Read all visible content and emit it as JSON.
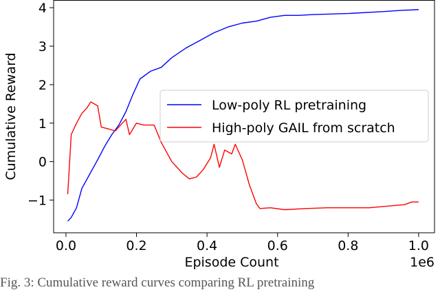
{
  "caption": "Fig. 3: Cumulative reward curves comparing RL pretraining",
  "chart_data": {
    "type": "line",
    "xlabel": "Episode Count",
    "ylabel": "Cumulative Reward",
    "x_offset_label": "1e6",
    "xlim": [
      -0.035,
      1.045
    ],
    "ylim": [
      -1.85,
      4.2
    ],
    "xticks": [
      0.0,
      0.2,
      0.4,
      0.6,
      0.8,
      1.0
    ],
    "xtick_labels": [
      "0.0",
      "0.2",
      "0.4",
      "0.6",
      "0.8",
      "1.0"
    ],
    "yticks": [
      -1,
      0,
      1,
      2,
      3,
      4
    ],
    "ytick_labels": [
      "−1",
      "0",
      "1",
      "2",
      "3",
      "4"
    ],
    "grid": false,
    "legend_position": "center-right",
    "series": [
      {
        "name": "Low-poly RL pretraining",
        "color": "#0000ff",
        "points": [
          [
            0.005,
            -1.55
          ],
          [
            0.015,
            -1.45
          ],
          [
            0.03,
            -1.2
          ],
          [
            0.045,
            -0.7
          ],
          [
            0.06,
            -0.45
          ],
          [
            0.075,
            -0.2
          ],
          [
            0.09,
            0.05
          ],
          [
            0.11,
            0.4
          ],
          [
            0.13,
            0.7
          ],
          [
            0.15,
            0.95
          ],
          [
            0.17,
            1.3
          ],
          [
            0.19,
            1.75
          ],
          [
            0.21,
            2.15
          ],
          [
            0.24,
            2.35
          ],
          [
            0.27,
            2.45
          ],
          [
            0.3,
            2.7
          ],
          [
            0.34,
            2.95
          ],
          [
            0.38,
            3.15
          ],
          [
            0.42,
            3.35
          ],
          [
            0.46,
            3.5
          ],
          [
            0.5,
            3.6
          ],
          [
            0.54,
            3.65
          ],
          [
            0.58,
            3.75
          ],
          [
            0.62,
            3.8
          ],
          [
            0.66,
            3.8
          ],
          [
            0.7,
            3.82
          ],
          [
            0.8,
            3.85
          ],
          [
            0.9,
            3.9
          ],
          [
            0.95,
            3.93
          ],
          [
            1.0,
            3.95
          ]
        ]
      },
      {
        "name": "High-poly GAIL from scratch",
        "color": "#ff0000",
        "points": [
          [
            0.005,
            -0.85
          ],
          [
            0.015,
            0.7
          ],
          [
            0.03,
            1.0
          ],
          [
            0.045,
            1.25
          ],
          [
            0.06,
            1.4
          ],
          [
            0.07,
            1.55
          ],
          [
            0.08,
            1.5
          ],
          [
            0.09,
            1.45
          ],
          [
            0.1,
            0.9
          ],
          [
            0.12,
            0.85
          ],
          [
            0.14,
            0.8
          ],
          [
            0.16,
            1.0
          ],
          [
            0.17,
            1.1
          ],
          [
            0.18,
            0.7
          ],
          [
            0.2,
            1.0
          ],
          [
            0.22,
            0.95
          ],
          [
            0.25,
            0.95
          ],
          [
            0.27,
            0.5
          ],
          [
            0.3,
            0.0
          ],
          [
            0.33,
            -0.3
          ],
          [
            0.35,
            -0.45
          ],
          [
            0.37,
            -0.4
          ],
          [
            0.39,
            -0.2
          ],
          [
            0.41,
            0.1
          ],
          [
            0.42,
            0.45
          ],
          [
            0.435,
            -0.15
          ],
          [
            0.45,
            0.3
          ],
          [
            0.47,
            0.2
          ],
          [
            0.48,
            0.45
          ],
          [
            0.5,
            0.05
          ],
          [
            0.52,
            -0.6
          ],
          [
            0.54,
            -1.1
          ],
          [
            0.55,
            -1.22
          ],
          [
            0.58,
            -1.2
          ],
          [
            0.62,
            -1.25
          ],
          [
            0.68,
            -1.22
          ],
          [
            0.74,
            -1.2
          ],
          [
            0.8,
            -1.2
          ],
          [
            0.86,
            -1.2
          ],
          [
            0.92,
            -1.15
          ],
          [
            0.96,
            -1.12
          ],
          [
            0.98,
            -1.05
          ],
          [
            1.0,
            -1.05
          ]
        ]
      }
    ]
  }
}
